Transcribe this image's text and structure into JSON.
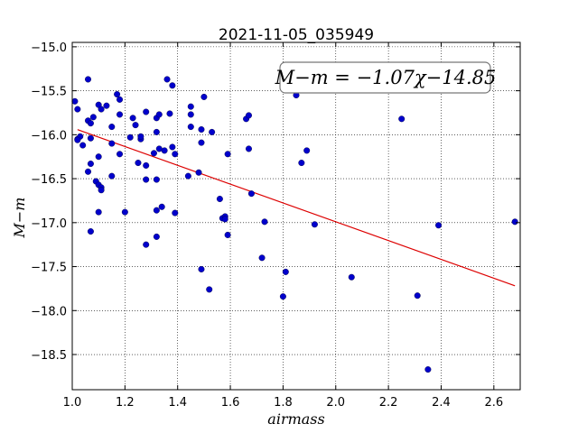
{
  "chart_data": {
    "type": "scatter",
    "title": "2021-11-05_035949",
    "xlabel": "airmass",
    "ylabel": "M−m",
    "xlim": [
      1.0,
      2.7
    ],
    "ylim": [
      -18.9,
      -14.95
    ],
    "y_inverted": true,
    "grid": true,
    "x_ticks": [
      1.0,
      1.2,
      1.4,
      1.6,
      1.8,
      2.0,
      2.2,
      2.4,
      2.6
    ],
    "x_tick_labels": [
      "1.0",
      "1.2",
      "1.4",
      "1.6",
      "1.8",
      "2.0",
      "2.2",
      "2.4",
      "2.6"
    ],
    "y_ticks": [
      -15.0,
      -15.5,
      -16.0,
      -16.5,
      -17.0,
      -17.5,
      -18.0,
      -18.5
    ],
    "y_tick_labels": [
      "−15.0",
      "−15.5",
      "−16.0",
      "−16.5",
      "−17.0",
      "−17.5",
      "−18.0",
      "−18.5"
    ],
    "annotation": "M−m = −1.07χ−14.85",
    "point_color": "#0000cc",
    "line_color": "#dd0000",
    "fit": {
      "slope": -1.07,
      "intercept": -14.85,
      "x_range": [
        1.02,
        2.68
      ]
    },
    "points": [
      [
        1.01,
        -15.62
      ],
      [
        1.02,
        -15.71
      ],
      [
        1.02,
        -16.05
      ],
      [
        1.03,
        -16.02
      ],
      [
        1.02,
        -16.06
      ],
      [
        1.04,
        -16.12
      ],
      [
        1.06,
        -16.42
      ],
      [
        1.06,
        -15.37
      ],
      [
        1.06,
        -15.84
      ],
      [
        1.07,
        -15.87
      ],
      [
        1.08,
        -15.8
      ],
      [
        1.07,
        -16.04
      ],
      [
        1.07,
        -16.33
      ],
      [
        1.07,
        -17.1
      ],
      [
        1.09,
        -16.53
      ],
      [
        1.1,
        -16.57
      ],
      [
        1.1,
        -16.88
      ],
      [
        1.11,
        -16.6
      ],
      [
        1.11,
        -16.63
      ],
      [
        1.1,
        -16.25
      ],
      [
        1.1,
        -15.66
      ],
      [
        1.11,
        -15.71
      ],
      [
        1.13,
        -15.67
      ],
      [
        1.15,
        -15.91
      ],
      [
        1.15,
        -16.47
      ],
      [
        1.15,
        -16.1
      ],
      [
        1.17,
        -15.54
      ],
      [
        1.18,
        -15.6
      ],
      [
        1.18,
        -15.77
      ],
      [
        1.18,
        -16.22
      ],
      [
        1.2,
        -16.88
      ],
      [
        1.22,
        -16.03
      ],
      [
        1.23,
        -15.81
      ],
      [
        1.24,
        -15.89
      ],
      [
        1.25,
        -16.32
      ],
      [
        1.26,
        -16.05
      ],
      [
        1.26,
        -16.02
      ],
      [
        1.28,
        -15.74
      ],
      [
        1.28,
        -16.35
      ],
      [
        1.28,
        -16.51
      ],
      [
        1.28,
        -17.25
      ],
      [
        1.31,
        -16.21
      ],
      [
        1.32,
        -15.97
      ],
      [
        1.32,
        -15.81
      ],
      [
        1.33,
        -15.77
      ],
      [
        1.32,
        -16.51
      ],
      [
        1.32,
        -16.86
      ],
      [
        1.32,
        -17.16
      ],
      [
        1.33,
        -16.16
      ],
      [
        1.34,
        -16.82
      ],
      [
        1.35,
        -16.18
      ],
      [
        1.36,
        -15.37
      ],
      [
        1.37,
        -15.76
      ],
      [
        1.38,
        -15.44
      ],
      [
        1.38,
        -16.14
      ],
      [
        1.39,
        -16.89
      ],
      [
        1.39,
        -16.22
      ],
      [
        1.44,
        -16.47
      ],
      [
        1.45,
        -15.77
      ],
      [
        1.45,
        -15.68
      ],
      [
        1.45,
        -15.91
      ],
      [
        1.48,
        -16.43
      ],
      [
        1.49,
        -15.94
      ],
      [
        1.49,
        -16.09
      ],
      [
        1.5,
        -15.57
      ],
      [
        1.49,
        -17.53
      ],
      [
        1.52,
        -17.76
      ],
      [
        1.53,
        -15.97
      ],
      [
        1.56,
        -16.73
      ],
      [
        1.57,
        -16.95
      ],
      [
        1.58,
        -16.93
      ],
      [
        1.58,
        -16.96
      ],
      [
        1.59,
        -16.22
      ],
      [
        1.59,
        -17.14
      ],
      [
        1.66,
        -15.82
      ],
      [
        1.67,
        -15.78
      ],
      [
        1.67,
        -16.16
      ],
      [
        1.68,
        -16.67
      ],
      [
        1.72,
        -17.4
      ],
      [
        1.73,
        -16.99
      ],
      [
        1.8,
        -17.84
      ],
      [
        1.81,
        -17.56
      ],
      [
        1.85,
        -15.55
      ],
      [
        1.87,
        -16.32
      ],
      [
        1.89,
        -16.18
      ],
      [
        1.92,
        -17.02
      ],
      [
        2.06,
        -17.62
      ],
      [
        2.25,
        -15.82
      ],
      [
        2.31,
        -17.83
      ],
      [
        2.35,
        -18.67
      ],
      [
        2.39,
        -17.03
      ],
      [
        2.68,
        -16.99
      ]
    ]
  }
}
